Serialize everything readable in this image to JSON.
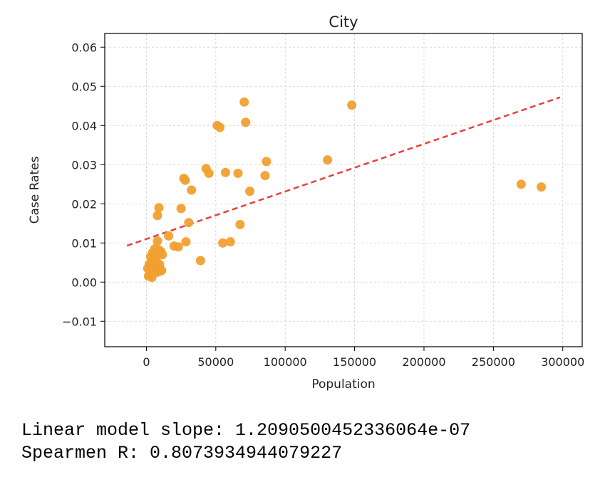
{
  "chart_data": {
    "type": "scatter",
    "title": "City",
    "xlabel": "Population",
    "ylabel": "Case Rates",
    "xlim": [
      -30000,
      314000
    ],
    "ylim": [
      -0.0165,
      0.0635
    ],
    "xticks": [
      0,
      50000,
      100000,
      150000,
      200000,
      250000,
      300000
    ],
    "yticks": [
      -0.01,
      0.0,
      0.01,
      0.02,
      0.03,
      0.04,
      0.05,
      0.06
    ],
    "xtick_labels": [
      "0",
      "50000",
      "100000",
      "150000",
      "200000",
      "250000",
      "300000"
    ],
    "ytick_labels": [
      "−0.01",
      "0.00",
      "0.01",
      "0.02",
      "0.03",
      "0.04",
      "0.05",
      "0.06"
    ],
    "grid": true,
    "point_color": "#f0a030",
    "trendline_color": "#e8413a",
    "trendline": {
      "x": [
        -14000,
        298000
      ],
      "y": [
        0.0093,
        0.0472
      ],
      "style": "dashed"
    },
    "points": [
      {
        "x": 1000,
        "y": 0.0035
      },
      {
        "x": 1500,
        "y": 0.0015
      },
      {
        "x": 2000,
        "y": 0.0045
      },
      {
        "x": 2500,
        "y": 0.002
      },
      {
        "x": 3000,
        "y": 0.0065
      },
      {
        "x": 3500,
        "y": 0.0025
      },
      {
        "x": 4000,
        "y": 0.005
      },
      {
        "x": 4000,
        "y": 0.0012
      },
      {
        "x": 4500,
        "y": 0.0075
      },
      {
        "x": 5000,
        "y": 0.0035
      },
      {
        "x": 5500,
        "y": 0.006
      },
      {
        "x": 6000,
        "y": 0.0045
      },
      {
        "x": 6000,
        "y": 0.0085
      },
      {
        "x": 6500,
        "y": 0.003
      },
      {
        "x": 7000,
        "y": 0.0055
      },
      {
        "x": 7500,
        "y": 0.0025
      },
      {
        "x": 8000,
        "y": 0.0105
      },
      {
        "x": 8000,
        "y": 0.007
      },
      {
        "x": 8500,
        "y": 0.0038
      },
      {
        "x": 9000,
        "y": 0.0082
      },
      {
        "x": 9500,
        "y": 0.0045
      },
      {
        "x": 10000,
        "y": 0.0028
      },
      {
        "x": 10500,
        "y": 0.0078
      },
      {
        "x": 11000,
        "y": 0.003
      },
      {
        "x": 11500,
        "y": 0.007
      },
      {
        "x": 8000,
        "y": 0.017
      },
      {
        "x": 9000,
        "y": 0.019
      },
      {
        "x": 16000,
        "y": 0.0118
      },
      {
        "x": 20000,
        "y": 0.0092
      },
      {
        "x": 23000,
        "y": 0.009
      },
      {
        "x": 25000,
        "y": 0.0188
      },
      {
        "x": 27000,
        "y": 0.0265
      },
      {
        "x": 28000,
        "y": 0.026
      },
      {
        "x": 28500,
        "y": 0.0103
      },
      {
        "x": 30500,
        "y": 0.0152
      },
      {
        "x": 32500,
        "y": 0.0235
      },
      {
        "x": 39000,
        "y": 0.0055
      },
      {
        "x": 43000,
        "y": 0.029
      },
      {
        "x": 45000,
        "y": 0.0278
      },
      {
        "x": 51000,
        "y": 0.04
      },
      {
        "x": 53000,
        "y": 0.0395
      },
      {
        "x": 55000,
        "y": 0.01
      },
      {
        "x": 57000,
        "y": 0.028
      },
      {
        "x": 60500,
        "y": 0.0103
      },
      {
        "x": 66000,
        "y": 0.0278
      },
      {
        "x": 67500,
        "y": 0.0147
      },
      {
        "x": 70500,
        "y": 0.046
      },
      {
        "x": 71500,
        "y": 0.0408
      },
      {
        "x": 74500,
        "y": 0.0232
      },
      {
        "x": 85500,
        "y": 0.0272
      },
      {
        "x": 86500,
        "y": 0.0308
      },
      {
        "x": 130500,
        "y": 0.0312
      },
      {
        "x": 148000,
        "y": 0.0452
      },
      {
        "x": 270000,
        "y": 0.025
      },
      {
        "x": 284500,
        "y": 0.0243
      }
    ]
  },
  "output": {
    "line1": "Linear model slope: 1.2090500452336064e-07",
    "line2": "Spearmen R: 0.8073934944079227"
  }
}
